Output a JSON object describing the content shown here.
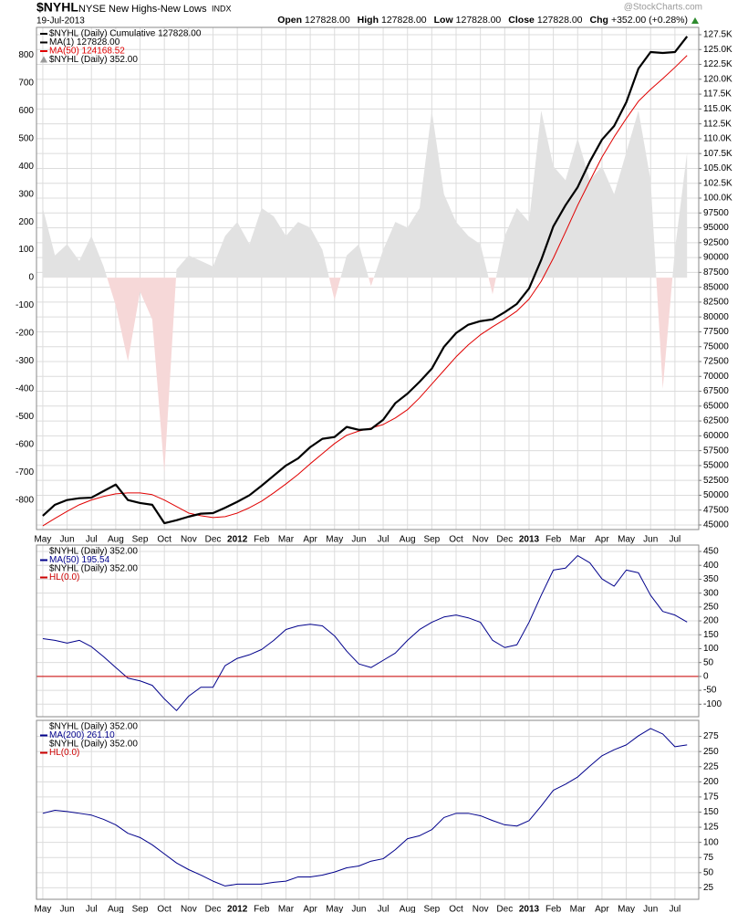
{
  "header": {
    "symbol": "$NYHL",
    "name": "NYSE New Highs-New Lows",
    "exchange": "INDX",
    "date": "19-Jul-2013",
    "quote": [
      {
        "label": "Open",
        "value": "127828.00"
      },
      {
        "label": "High",
        "value": "127828.00"
      },
      {
        "label": "Low",
        "value": "127828.00"
      },
      {
        "label": "Close",
        "value": "127828.00"
      },
      {
        "label": "Chg",
        "value": "+352.00 (+0.28%)"
      }
    ],
    "change_color": "#2e8b2e",
    "watermark": "@StockCharts.com"
  },
  "chart_data": [
    {
      "type": "line",
      "grid": true,
      "x": [
        0,
        0.5,
        1,
        1.5,
        2,
        2.5,
        3,
        3.5,
        4,
        4.5,
        5,
        5.5,
        6,
        6.5,
        7,
        7.5,
        8,
        8.5,
        9,
        9.5,
        10,
        10.5,
        11,
        11.5,
        12,
        12.5,
        13,
        13.5,
        14,
        14.5,
        15,
        15.5,
        16,
        16.5,
        17,
        17.5,
        18,
        18.5,
        19,
        19.5,
        20,
        20.5,
        21,
        21.5,
        22,
        22.5,
        23,
        23.5,
        24,
        24.5,
        25,
        25.5,
        26,
        26.5
      ],
      "xlim": [
        -0.26,
        26.98
      ],
      "xticks": [
        {
          "value": 0,
          "label": "May"
        },
        {
          "value": 1,
          "label": "Jun"
        },
        {
          "value": 2,
          "label": "Jul"
        },
        {
          "value": 3,
          "label": "Aug"
        },
        {
          "value": 4,
          "label": "Sep"
        },
        {
          "value": 5,
          "label": "Oct"
        },
        {
          "value": 6,
          "label": "Nov"
        },
        {
          "value": 7,
          "label": "Dec"
        },
        {
          "value": 8,
          "label": "2012"
        },
        {
          "value": 9,
          "label": "Feb"
        },
        {
          "value": 10,
          "label": "Mar"
        },
        {
          "value": 11,
          "label": "Apr"
        },
        {
          "value": 12,
          "label": "May"
        },
        {
          "value": 13,
          "label": "Jun"
        },
        {
          "value": 14,
          "label": "Jul"
        },
        {
          "value": 15,
          "label": "Aug"
        },
        {
          "value": 16,
          "label": "Sep"
        },
        {
          "value": 17,
          "label": "Oct"
        },
        {
          "value": 18,
          "label": "Nov"
        },
        {
          "value": 19,
          "label": "Dec"
        },
        {
          "value": 20,
          "label": "2013"
        },
        {
          "value": 21,
          "label": "Feb"
        },
        {
          "value": 22,
          "label": "Mar"
        },
        {
          "value": 23,
          "label": "Apr"
        },
        {
          "value": 24,
          "label": "May"
        },
        {
          "value": 25,
          "label": "Jun"
        },
        {
          "value": 26,
          "label": "Jul"
        }
      ],
      "ylim": [
        -905,
        899
      ],
      "yticks": [
        800,
        700,
        600,
        500,
        400,
        300,
        200,
        100,
        0,
        -100,
        -200,
        -300,
        -400,
        -500,
        -600,
        -700,
        -800
      ],
      "y2lim": [
        44230,
        128730
      ],
      "y2ticks": [
        {
          "value": 127500,
          "label": "127.5K"
        },
        {
          "value": 125000,
          "label": "125.0K"
        },
        {
          "value": 122500,
          "label": "122.5K"
        },
        {
          "value": 120000,
          "label": "120.0K"
        },
        {
          "value": 117500,
          "label": "117.5K"
        },
        {
          "value": 115000,
          "label": "115.0K"
        },
        {
          "value": 112500,
          "label": "112.5K"
        },
        {
          "value": 110000,
          "label": "110.0K"
        },
        {
          "value": 107500,
          "label": "107.5K"
        },
        {
          "value": 105000,
          "label": "105.0K"
        },
        {
          "value": 102500,
          "label": "102.5K"
        },
        {
          "value": 100000,
          "label": "100.0K"
        },
        97500,
        95000,
        92500,
        90000,
        87500,
        85000,
        82500,
        80000,
        77500,
        75000,
        72500,
        70000,
        67500,
        65000,
        62500,
        60000,
        57500,
        55000,
        52500,
        50000,
        47500,
        45000
      ],
      "series": [
        {
          "name": "$NYHL (Daily) Cumulative 127828.00",
          "color": "#000000",
          "width": 2.2,
          "axis": "y2",
          "values": [
            46550,
            48400,
            49200,
            49500,
            49600,
            50700,
            51800,
            49200,
            48700,
            48400,
            45300,
            45800,
            46400,
            46900,
            47000,
            47900,
            48900,
            50000,
            51600,
            53300,
            55000,
            56200,
            58100,
            59500,
            59800,
            61500,
            61000,
            61150,
            62700,
            65500,
            67100,
            69100,
            71300,
            74970,
            77300,
            78700,
            79300,
            79600,
            80800,
            82200,
            84800,
            89600,
            95250,
            98800,
            101850,
            106150,
            109840,
            112140,
            116130,
            121800,
            124580,
            124430,
            124580,
            127200
          ]
        },
        {
          "name": "MA(1) 127828.00",
          "color": "#000000",
          "width": 1.2,
          "axis": "y2",
          "values": [
            46550,
            48400,
            49200,
            49500,
            49600,
            50700,
            51800,
            49200,
            48700,
            48400,
            45300,
            45800,
            46400,
            46900,
            47000,
            47900,
            48900,
            50000,
            51600,
            53300,
            55000,
            56200,
            58100,
            59500,
            59800,
            61500,
            61000,
            61150,
            62700,
            65500,
            67100,
            69100,
            71300,
            74970,
            77300,
            78700,
            79300,
            79600,
            80800,
            82200,
            84800,
            89600,
            95250,
            98800,
            101850,
            106150,
            109840,
            112140,
            116130,
            121800,
            124580,
            124430,
            124580,
            127200
          ]
        },
        {
          "name": "MA(50) 124168.52",
          "color": "#e00000",
          "width": 1,
          "axis": "y2",
          "values": [
            44860,
            46100,
            47300,
            48400,
            49200,
            49800,
            50240,
            50400,
            50400,
            50100,
            49200,
            48100,
            47000,
            46550,
            46250,
            46400,
            47000,
            47900,
            49000,
            50400,
            51900,
            53500,
            55300,
            57000,
            58700,
            60100,
            60800,
            61300,
            61900,
            63000,
            64400,
            66400,
            68700,
            71000,
            73300,
            75300,
            77000,
            78350,
            79600,
            81000,
            83000,
            86000,
            89900,
            94300,
            98800,
            102900,
            106900,
            110300,
            113400,
            116300,
            118300,
            120100,
            122000,
            124000
          ]
        },
        {
          "name": "$NYHL (Daily) 352.00",
          "color": "#e2e2e2",
          "negative_color": "#f6d8d8",
          "style": "area",
          "axis": "y",
          "values": [
            250,
            80,
            120,
            60,
            150,
            40,
            -100,
            -300,
            -50,
            -150,
            -700,
            30,
            80,
            60,
            40,
            150,
            200,
            120,
            250,
            220,
            150,
            200,
            180,
            100,
            -80,
            80,
            120,
            -30,
            100,
            200,
            180,
            250,
            600,
            300,
            200,
            150,
            120,
            -60,
            150,
            250,
            200,
            600,
            400,
            350,
            500,
            350,
            400,
            300,
            450,
            600,
            350,
            -400,
            100,
            450
          ]
        }
      ]
    },
    {
      "type": "line",
      "grid": true,
      "title": "$NYHL (Daily) 352.00",
      "x": [
        0,
        0.5,
        1,
        1.5,
        2,
        2.5,
        3,
        3.5,
        4,
        4.5,
        5,
        5.5,
        6,
        6.5,
        7,
        7.5,
        8,
        8.5,
        9,
        9.5,
        10,
        10.5,
        11,
        11.5,
        12,
        12.5,
        13,
        13.5,
        14,
        14.5,
        15,
        15.5,
        16,
        16.5,
        17,
        17.5,
        18,
        18.5,
        19,
        19.5,
        20,
        20.5,
        21,
        21.5,
        22,
        22.5,
        23,
        23.5,
        24,
        24.5,
        25,
        25.5,
        26,
        26.5
      ],
      "xlim": [
        -0.26,
        26.98
      ],
      "ylim": [
        -145,
        473
      ],
      "yticks": [
        450,
        400,
        350,
        300,
        250,
        200,
        150,
        100,
        50,
        0,
        -50,
        -100
      ],
      "series": [
        {
          "name": "MA(50) 195.54",
          "color": "#00008b",
          "width": 1,
          "values": [
            136,
            130,
            120,
            130,
            107,
            71,
            32,
            -6,
            -16,
            -32,
            -81,
            -123,
            -71,
            -39,
            -39,
            39,
            65,
            78,
            97,
            130,
            169,
            182,
            188,
            182,
            146,
            91,
            45,
            32,
            58,
            84,
            130,
            169,
            195,
            214,
            221,
            211,
            195,
            130,
            104,
            114,
            195,
            292,
            383,
            390,
            435,
            409,
            351,
            325,
            383,
            373,
            292,
            234,
            221,
            196
          ]
        }
      ],
      "legend_text": "$NYHL (Daily) 352.00",
      "hline": {
        "name": "HL(0.0)",
        "value": 0,
        "color": "#cc0000"
      }
    },
    {
      "type": "line",
      "grid": true,
      "title": "$NYHL (Daily) 352.00",
      "x": [
        0,
        0.5,
        1,
        1.5,
        2,
        2.5,
        3,
        3.5,
        4,
        4.5,
        5,
        5.5,
        6,
        6.5,
        7,
        7.5,
        8,
        8.5,
        9,
        9.5,
        10,
        10.5,
        11,
        11.5,
        12,
        12.5,
        13,
        13.5,
        14,
        14.5,
        15,
        15.5,
        16,
        16.5,
        17,
        17.5,
        18,
        18.5,
        19,
        19.5,
        20,
        20.5,
        21,
        21.5,
        22,
        22.5,
        23,
        23.5,
        24,
        24.5,
        25,
        25.5,
        26,
        26.5
      ],
      "xlim": [
        -0.26,
        26.98
      ],
      "xticks": [
        {
          "value": 0,
          "label": "May"
        },
        {
          "value": 1,
          "label": "Jun"
        },
        {
          "value": 2,
          "label": "Jul"
        },
        {
          "value": 3,
          "label": "Aug"
        },
        {
          "value": 4,
          "label": "Sep"
        },
        {
          "value": 5,
          "label": "Oct"
        },
        {
          "value": 6,
          "label": "Nov"
        },
        {
          "value": 7,
          "label": "Dec"
        },
        {
          "value": 8,
          "label": "2012"
        },
        {
          "value": 9,
          "label": "Feb"
        },
        {
          "value": 10,
          "label": "Mar"
        },
        {
          "value": 11,
          "label": "Apr"
        },
        {
          "value": 12,
          "label": "May"
        },
        {
          "value": 13,
          "label": "Jun"
        },
        {
          "value": 14,
          "label": "Jul"
        },
        {
          "value": 15,
          "label": "Aug"
        },
        {
          "value": 16,
          "label": "Sep"
        },
        {
          "value": 17,
          "label": "Oct"
        },
        {
          "value": 18,
          "label": "Nov"
        },
        {
          "value": 19,
          "label": "Dec"
        },
        {
          "value": 20,
          "label": "2013"
        },
        {
          "value": 21,
          "label": "Feb"
        },
        {
          "value": 22,
          "label": "Mar"
        },
        {
          "value": 23,
          "label": "Apr"
        },
        {
          "value": 24,
          "label": "May"
        },
        {
          "value": 25,
          "label": "Jun"
        },
        {
          "value": 26,
          "label": "Jul"
        }
      ],
      "ylim": [
        6,
        301.5
      ],
      "yticks": [
        275,
        250,
        225,
        200,
        175,
        150,
        125,
        100,
        75,
        50,
        25
      ],
      "series": [
        {
          "name": "MA(200) 261.10",
          "color": "#00008b",
          "width": 1,
          "values": [
            148,
            153,
            151,
            148,
            145,
            138,
            129,
            115,
            108,
            96,
            81,
            66,
            55,
            46,
            36,
            28,
            31,
            31,
            31,
            34,
            36,
            43,
            43,
            46,
            51,
            58,
            61,
            69,
            73,
            88,
            106,
            111,
            121,
            141,
            148,
            148,
            144,
            136,
            129,
            127,
            136,
            160,
            186,
            196,
            208,
            226,
            243,
            253,
            261,
            276,
            288,
            279,
            258,
            261
          ]
        }
      ],
      "legend_text": "$NYHL (Daily) 352.00",
      "hline": {
        "name": "HL(0.0)",
        "value": 0,
        "color": "#cc0000"
      }
    }
  ]
}
